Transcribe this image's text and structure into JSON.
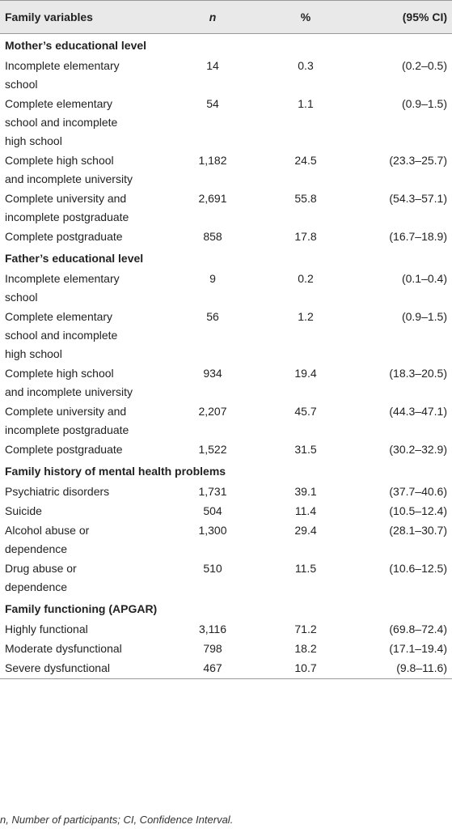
{
  "table": {
    "header": [
      "Family variables",
      "n",
      "%",
      "(95% CI)"
    ],
    "sections": [
      {
        "title": "Mother’s educational level",
        "rows": [
          [
            "Incomplete elementary school",
            "14",
            "0.3",
            "(0.2–0.5)"
          ],
          [
            "Complete elementary school and incomplete high school",
            "54",
            "1.1",
            "(0.9–1.5)"
          ],
          [
            "Complete high school and incomplete university",
            "1,182",
            "24.5",
            "(23.3–25.7)"
          ],
          [
            "Complete university and incomplete postgraduate",
            "2,691",
            "55.8",
            "(54.3–57.1)"
          ],
          [
            "Complete postgraduate",
            "858",
            "17.8",
            "(16.7–18.9)"
          ]
        ]
      },
      {
        "title": "Father’s educational level",
        "rows": [
          [
            "Incomplete elementary school",
            "9",
            "0.2",
            "(0.1–0.4)"
          ],
          [
            "Complete elementary school and incomplete high school",
            "56",
            "1.2",
            "(0.9–1.5)"
          ],
          [
            "Complete high school and incomplete university",
            "934",
            "19.4",
            "(18.3–20.5)"
          ],
          [
            "Complete university and incomplete postgraduate",
            "2,207",
            "45.7",
            "(44.3–47.1)"
          ],
          [
            "Complete postgraduate",
            "1,522",
            "31.5",
            "(30.2–32.9)"
          ]
        ]
      },
      {
        "title": "Family history of mental health problems",
        "rows": [
          [
            "Psychiatric disorders",
            "1,731",
            "39.1",
            "(37.7–40.6)"
          ],
          [
            "Suicide",
            "504",
            "11.4",
            "(10.5–12.4)"
          ],
          [
            "Alcohol abuse or dependence",
            "1,300",
            "29.4",
            "(28.1–30.7)"
          ],
          [
            "Drug abuse or dependence",
            "510",
            "11.5",
            "(10.6–12.5)"
          ]
        ]
      },
      {
        "title": "Family functioning (APGAR)",
        "rows": [
          [
            "Highly functional",
            "3,116",
            "71.2",
            "(69.8–72.4)"
          ],
          [
            "Moderate dysfunctional",
            "798",
            "18.2",
            "(17.1–19.4)"
          ],
          [
            "Severe dysfunctional",
            "467",
            "10.7",
            "(9.8–11.6)"
          ]
        ]
      }
    ],
    "footnote": "n, Number of participants; CI, Confidence Interval."
  }
}
